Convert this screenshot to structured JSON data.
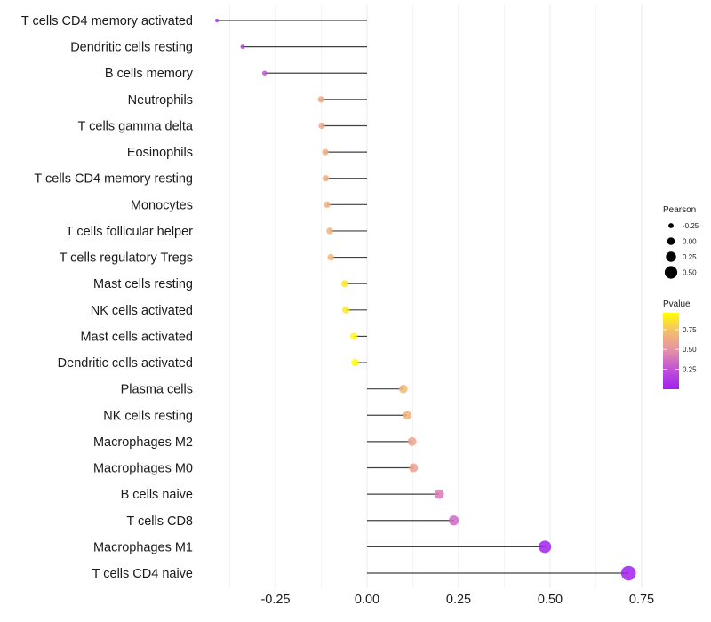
{
  "chart_data": {
    "type": "lollipop",
    "title": "",
    "xlabel": "",
    "ylabel": "",
    "xlim": [
      -0.43,
      0.77
    ],
    "x_ticks": [
      -0.25,
      0.0,
      0.25,
      0.5,
      0.75
    ],
    "x_tick_labels": [
      "-0.25",
      "0.00",
      "0.25",
      "0.50",
      "0.75"
    ],
    "grid": true,
    "categories": [
      "T cells CD4 memory activated",
      "Dendritic cells resting",
      "B cells memory",
      "Neutrophils",
      "T cells gamma delta",
      "Eosinophils",
      "T cells CD4 memory resting",
      "Monocytes",
      "T cells follicular helper",
      "T cells regulatory  Tregs ",
      "Mast cells resting",
      "NK cells activated",
      "Mast cells activated",
      "Dendritic cells activated",
      "Plasma cells",
      "NK cells resting",
      "Macrophages M2",
      "Macrophages M0",
      "B cells naive",
      "T cells CD8",
      "Macrophages M1",
      "T cells CD4 naive"
    ],
    "series": [
      {
        "name": "Pearson",
        "values": [
          -0.41,
          -0.34,
          -0.28,
          -0.126,
          -0.124,
          -0.114,
          -0.113,
          -0.109,
          -0.102,
          -0.099,
          -0.061,
          -0.058,
          -0.036,
          -0.033,
          0.099,
          0.11,
          0.123,
          0.127,
          0.197,
          0.237,
          0.486,
          0.714
        ]
      },
      {
        "name": "Pvalue",
        "values": [
          0.02,
          0.12,
          0.25,
          0.62,
          0.62,
          0.65,
          0.65,
          0.66,
          0.68,
          0.69,
          0.87,
          0.88,
          0.95,
          0.96,
          0.7,
          0.67,
          0.6,
          0.58,
          0.4,
          0.33,
          0.01,
          0.0005
        ]
      }
    ],
    "legend": {
      "position": "right",
      "size": {
        "title": "Pearson",
        "entries": [
          {
            "label": "-0.25",
            "value": -0.25
          },
          {
            "label": "0.00",
            "value": 0.0
          },
          {
            "label": "0.25",
            "value": 0.25
          },
          {
            "label": "0.50",
            "value": 0.5
          }
        ]
      },
      "color": {
        "title": "Pvalue",
        "ticks": [
          {
            "label": "0.75",
            "value": 0.75
          },
          {
            "label": "0.50",
            "value": 0.5
          },
          {
            "label": "0.25",
            "value": 0.25
          }
        ],
        "range": [
          0.0,
          0.96
        ],
        "low_color": "#a020f0",
        "mid_color": "#e090a0",
        "high_color": "#ffff00"
      }
    },
    "colors": {
      "stem": "#000000",
      "grid": "#ebebeb",
      "background": "#ffffff"
    }
  }
}
